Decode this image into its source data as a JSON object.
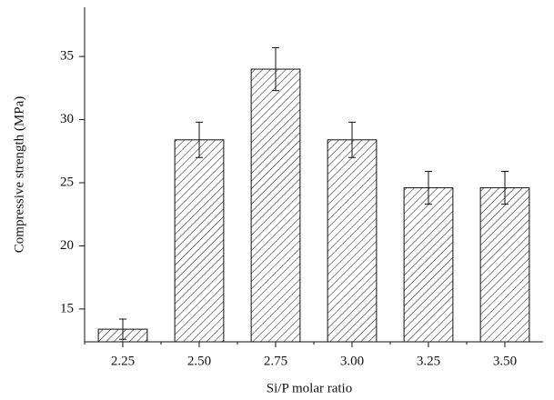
{
  "chart_data": {
    "type": "bar",
    "x_label": "Si/P molar ratio",
    "y_label": "Compressive strength (MPa)",
    "categories": [
      "2.25",
      "2.50",
      "2.75",
      "3.00",
      "3.25",
      "3.50"
    ],
    "values": [
      13.4,
      28.4,
      34.0,
      28.4,
      24.6,
      24.6
    ],
    "errors": [
      0.8,
      1.4,
      1.7,
      1.4,
      1.3,
      1.3
    ],
    "color": "#111111",
    "ylim": [
      12.4,
      38.9
    ],
    "yticks": [
      15,
      20,
      25,
      30,
      35
    ]
  }
}
